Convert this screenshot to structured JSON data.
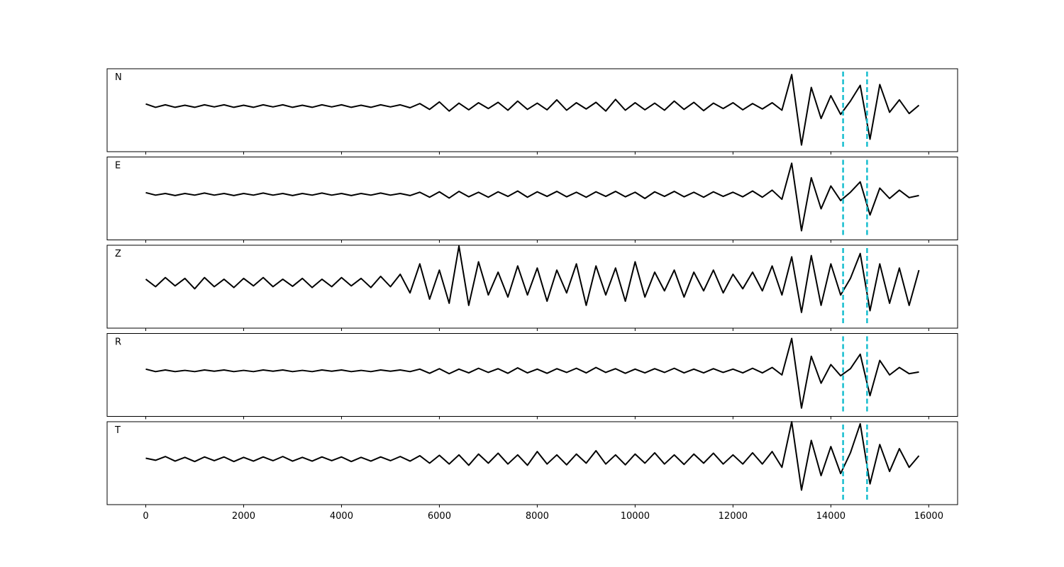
{
  "chart_data": {
    "type": "line",
    "color": "#000000",
    "stacked_panels": true,
    "x": [
      0,
      200,
      400,
      600,
      800,
      1000,
      1200,
      1400,
      1600,
      1800,
      2000,
      2200,
      2400,
      2600,
      2800,
      3000,
      3200,
      3400,
      3600,
      3800,
      4000,
      4200,
      4400,
      4600,
      4800,
      5000,
      5200,
      5400,
      5600,
      5800,
      6000,
      6200,
      6400,
      6600,
      6800,
      7000,
      7200,
      7400,
      7600,
      7800,
      8000,
      8200,
      8400,
      8600,
      8800,
      9000,
      9200,
      9400,
      9600,
      9800,
      10000,
      10200,
      10400,
      10600,
      10800,
      11000,
      11200,
      11400,
      11600,
      11800,
      12000,
      12200,
      12400,
      12600,
      12800,
      13000,
      13200,
      13400,
      13600,
      13800,
      14000,
      14200,
      14400,
      14600,
      14800,
      15000,
      15200,
      15400,
      15600,
      15800
    ],
    "series": [
      {
        "name": "N",
        "values": [
          0.05,
          -0.03,
          0.03,
          -0.03,
          0.02,
          -0.03,
          0.03,
          -0.02,
          0.03,
          -0.03,
          0.02,
          -0.03,
          0.03,
          -0.02,
          0.03,
          -0.03,
          0.02,
          -0.03,
          0.03,
          -0.02,
          0.03,
          -0.03,
          0.02,
          -0.03,
          0.03,
          -0.02,
          0.03,
          -0.04,
          0.06,
          -0.08,
          0.1,
          -0.12,
          0.07,
          -0.09,
          0.08,
          -0.06,
          0.09,
          -0.1,
          0.12,
          -0.08,
          0.07,
          -0.09,
          0.15,
          -0.1,
          0.08,
          -0.07,
          0.09,
          -0.12,
          0.16,
          -0.1,
          0.08,
          -0.09,
          0.07,
          -0.1,
          0.12,
          -0.08,
          0.09,
          -0.11,
          0.07,
          -0.06,
          0.08,
          -0.09,
          0.06,
          -0.07,
          0.08,
          -0.1,
          0.76,
          -0.94,
          0.45,
          -0.3,
          0.25,
          -0.2,
          0.12,
          0.5,
          -0.8,
          0.52,
          -0.15,
          0.15,
          -0.18,
          0.02
        ]
      },
      {
        "name": "E",
        "values": [
          0.04,
          -0.02,
          0.02,
          -0.03,
          0.02,
          -0.02,
          0.03,
          -0.02,
          0.02,
          -0.03,
          0.02,
          -0.02,
          0.03,
          -0.02,
          0.02,
          -0.03,
          0.02,
          -0.02,
          0.03,
          -0.02,
          0.02,
          -0.03,
          0.02,
          -0.02,
          0.03,
          -0.02,
          0.02,
          -0.03,
          0.05,
          -0.07,
          0.06,
          -0.09,
          0.07,
          -0.06,
          0.05,
          -0.07,
          0.06,
          -0.05,
          0.08,
          -0.07,
          0.06,
          -0.05,
          0.07,
          -0.06,
          0.05,
          -0.07,
          0.06,
          -0.05,
          0.07,
          -0.06,
          0.05,
          -0.1,
          0.06,
          -0.05,
          0.07,
          -0.06,
          0.05,
          -0.07,
          0.06,
          -0.05,
          0.05,
          -0.06,
          0.08,
          -0.07,
          0.1,
          -0.12,
          0.75,
          -0.88,
          0.4,
          -0.35,
          0.2,
          -0.15,
          0.05,
          0.3,
          -0.5,
          0.15,
          -0.1,
          0.1,
          -0.08,
          -0.03
        ]
      },
      {
        "name": "Z",
        "values": [
          0.08,
          -0.1,
          0.12,
          -0.08,
          0.1,
          -0.15,
          0.12,
          -0.1,
          0.08,
          -0.12,
          0.1,
          -0.08,
          0.12,
          -0.1,
          0.08,
          -0.09,
          0.1,
          -0.12,
          0.08,
          -0.1,
          0.12,
          -0.08,
          0.1,
          -0.12,
          0.15,
          -0.1,
          0.2,
          -0.25,
          0.45,
          -0.4,
          0.3,
          -0.5,
          0.88,
          -0.55,
          0.5,
          -0.3,
          0.25,
          -0.35,
          0.4,
          -0.3,
          0.35,
          -0.45,
          0.3,
          -0.25,
          0.45,
          -0.55,
          0.4,
          -0.3,
          0.35,
          -0.45,
          0.5,
          -0.35,
          0.25,
          -0.2,
          0.3,
          -0.35,
          0.25,
          -0.2,
          0.3,
          -0.25,
          0.2,
          -0.15,
          0.25,
          -0.2,
          0.4,
          -0.3,
          0.62,
          -0.72,
          0.65,
          -0.55,
          0.45,
          -0.3,
          0.1,
          0.7,
          -0.68,
          0.45,
          -0.5,
          0.35,
          -0.55,
          0.3
        ]
      },
      {
        "name": "R",
        "values": [
          0.04,
          -0.02,
          0.02,
          -0.02,
          0.01,
          -0.02,
          0.02,
          -0.01,
          0.02,
          -0.02,
          0.01,
          -0.02,
          0.02,
          -0.01,
          0.02,
          -0.02,
          0.01,
          -0.02,
          0.02,
          -0.01,
          0.02,
          -0.02,
          0.01,
          -0.02,
          0.02,
          -0.01,
          0.02,
          -0.02,
          0.04,
          -0.06,
          0.05,
          -0.07,
          0.04,
          -0.05,
          0.06,
          -0.04,
          0.05,
          -0.06,
          0.07,
          -0.05,
          0.04,
          -0.06,
          0.05,
          -0.04,
          0.06,
          -0.05,
          0.08,
          -0.04,
          0.05,
          -0.06,
          0.04,
          -0.05,
          0.05,
          -0.04,
          0.06,
          -0.05,
          0.04,
          -0.05,
          0.05,
          -0.04,
          0.04,
          -0.05,
          0.06,
          -0.05,
          0.08,
          -0.1,
          0.78,
          -0.9,
          0.35,
          -0.3,
          0.15,
          -0.12,
          0.05,
          0.4,
          -0.6,
          0.25,
          -0.1,
          0.08,
          -0.07,
          -0.03
        ]
      },
      {
        "name": "T",
        "values": [
          0.02,
          -0.03,
          0.06,
          -0.05,
          0.04,
          -0.06,
          0.05,
          -0.04,
          0.05,
          -0.06,
          0.04,
          -0.05,
          0.05,
          -0.04,
          0.06,
          -0.05,
          0.04,
          -0.05,
          0.05,
          -0.04,
          0.05,
          -0.06,
          0.04,
          -0.05,
          0.05,
          -0.04,
          0.06,
          -0.05,
          0.08,
          -0.1,
          0.09,
          -0.12,
          0.1,
          -0.15,
          0.12,
          -0.1,
          0.14,
          -0.12,
          0.1,
          -0.15,
          0.18,
          -0.12,
          0.1,
          -0.14,
          0.12,
          -0.1,
          0.2,
          -0.12,
          0.1,
          -0.14,
          0.12,
          -0.1,
          0.15,
          -0.12,
          0.1,
          -0.13,
          0.12,
          -0.1,
          0.14,
          -0.12,
          0.1,
          -0.12,
          0.15,
          -0.12,
          0.18,
          -0.2,
          0.9,
          -0.75,
          0.45,
          -0.4,
          0.3,
          -0.35,
          0.15,
          0.85,
          -0.6,
          0.35,
          -0.3,
          0.25,
          -0.2,
          0.08
        ]
      }
    ],
    "xlim": [
      -790,
      16590
    ],
    "ylim": [
      -1.1,
      0.9
    ],
    "xticks": [
      0,
      2000,
      4000,
      6000,
      8000,
      10000,
      12000,
      14000,
      16000
    ],
    "vlines": [
      14250,
      14740
    ],
    "vline_color": "#17becf",
    "vline_style": "dashed"
  }
}
